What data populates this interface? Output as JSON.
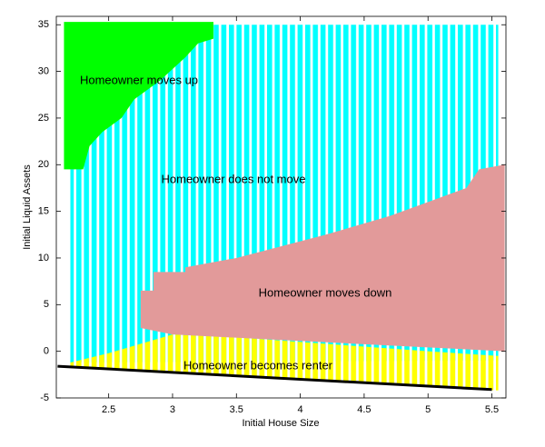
{
  "chart_data": {
    "type": "region",
    "x_label": "Initial House Size",
    "y_label": "Initial Liquid Assets",
    "xlim": [
      2.09,
      5.61
    ],
    "ylim": [
      -5,
      35.9
    ],
    "xticks": [
      2.5,
      3,
      3.5,
      4,
      4.5,
      5,
      5.5
    ],
    "yticks": [
      -5,
      0,
      5,
      10,
      15,
      20,
      25,
      30,
      35
    ],
    "regions": [
      {
        "name": "Homeowner does not move",
        "color": "#00ffff",
        "striped": true,
        "x": [
          2.2,
          2.2,
          5.55,
          5.55
        ],
        "y": [
          -1.2,
          35,
          35,
          -1
        ]
      },
      {
        "name": "Homeowner becomes renter",
        "color": "#ffff00",
        "striped": true,
        "x": [
          2.2,
          2.5,
          2.8,
          3.0,
          3.5,
          4.0,
          4.5,
          5.0,
          5.55,
          5.55,
          2.2
        ],
        "y": [
          -1.2,
          -0.2,
          1,
          1.8,
          1.5,
          1,
          0.5,
          0,
          -0.5,
          -4.2,
          -1.7
        ]
      },
      {
        "name": "Homeowner moves down",
        "color": "#e29a9a",
        "striped": false,
        "x": [
          2.75,
          2.75,
          2.85,
          2.85,
          3.1,
          3.1,
          3.5,
          4.2,
          4.7,
          5.0,
          5.3,
          5.4,
          5.6,
          5.6,
          3.0
        ],
        "y": [
          2.5,
          6.5,
          6.5,
          8.5,
          8.5,
          9,
          10,
          12.5,
          14.5,
          16,
          17.5,
          19.5,
          20,
          0,
          1.8
        ]
      },
      {
        "name": "Homeowner moves up",
        "color": "#00ff00",
        "striped": false,
        "x": [
          2.15,
          2.15,
          3.32,
          3.32,
          3.2,
          3.1,
          2.9,
          2.7,
          2.6,
          2.45,
          2.35,
          2.3
        ],
        "y": [
          19.5,
          35.3,
          35.3,
          33.5,
          33,
          31.5,
          29,
          27,
          25,
          23.5,
          22,
          19.5
        ]
      }
    ],
    "boundary": {
      "color": "#000000",
      "x": [
        2.1,
        5.5
      ],
      "y": [
        -1.6,
        -4.1
      ]
    }
  }
}
